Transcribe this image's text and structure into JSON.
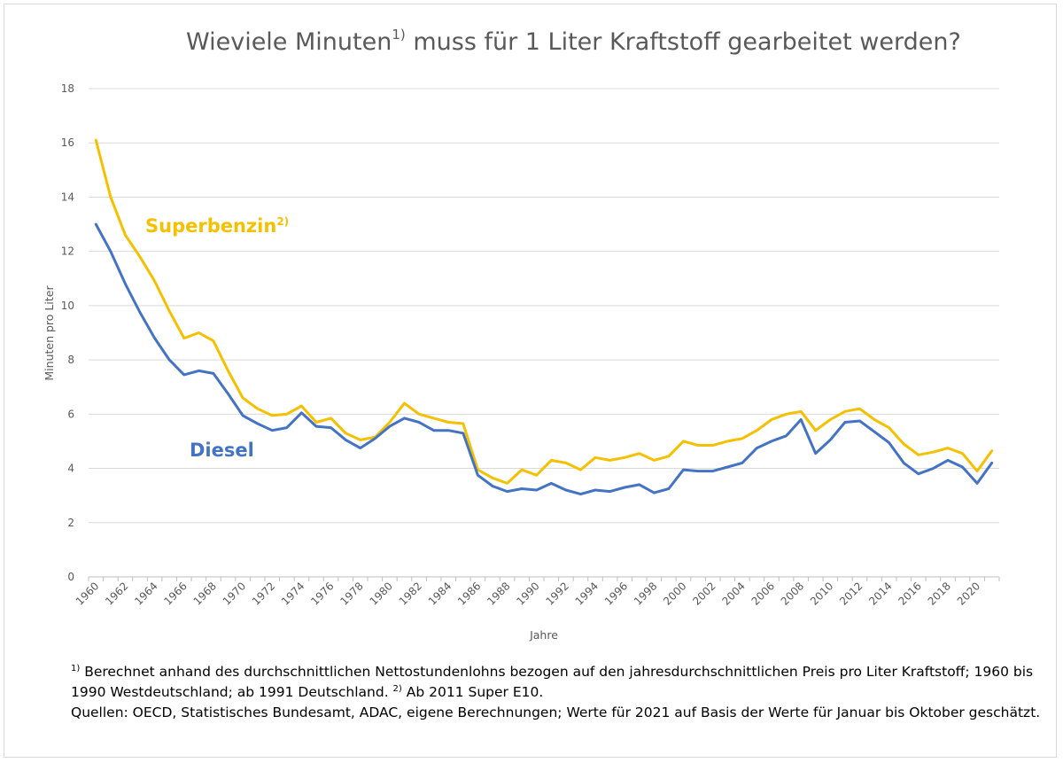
{
  "chart_data": {
    "type": "line",
    "title": {
      "main": "Wieviele Minuten",
      "sup": "1)",
      "rest": " muss für 1 Liter Kraftstoff gearbeitet werden?"
    },
    "xlabel": "Jahre",
    "ylabel": "Minuten pro Liter",
    "ylim": [
      0,
      18
    ],
    "yticks": [
      "0",
      "2",
      "4",
      "6",
      "8",
      "10",
      "12",
      "14",
      "16",
      "18"
    ],
    "xticks": [
      "1960",
      "1962",
      "1964",
      "1966",
      "1968",
      "1970",
      "1972",
      "1974",
      "1976",
      "1978",
      "1980",
      "1982",
      "1984",
      "1986",
      "1988",
      "1990",
      "1992",
      "1994",
      "1996",
      "1998",
      "2000",
      "2002",
      "2004",
      "2006",
      "2008",
      "2010",
      "2012",
      "2014",
      "2016",
      "2018",
      "2020"
    ],
    "grid": "horizontal",
    "x": [
      1960,
      1961,
      1962,
      1963,
      1964,
      1965,
      1966,
      1967,
      1968,
      1969,
      1970,
      1971,
      1972,
      1973,
      1974,
      1975,
      1976,
      1977,
      1978,
      1979,
      1980,
      1981,
      1982,
      1983,
      1984,
      1985,
      1986,
      1987,
      1988,
      1989,
      1990,
      1991,
      1992,
      1993,
      1994,
      1995,
      1996,
      1997,
      1998,
      1999,
      2000,
      2001,
      2002,
      2003,
      2004,
      2005,
      2006,
      2007,
      2008,
      2009,
      2010,
      2011,
      2012,
      2013,
      2014,
      2015,
      2016,
      2017,
      2018,
      2019,
      2020,
      2021
    ],
    "series": [
      {
        "name": "Superbenzin",
        "name_sup": "2)",
        "color": "#f5c000",
        "values": [
          16.1,
          14.0,
          12.6,
          11.8,
          10.9,
          9.8,
          8.8,
          9.0,
          8.7,
          7.6,
          6.6,
          6.2,
          5.95,
          6.0,
          6.3,
          5.7,
          5.85,
          5.3,
          5.05,
          5.15,
          5.7,
          6.4,
          6.0,
          5.85,
          5.7,
          5.65,
          3.95,
          3.65,
          3.45,
          3.95,
          3.75,
          4.3,
          4.2,
          3.95,
          4.4,
          4.3,
          4.4,
          4.55,
          4.3,
          4.45,
          5.0,
          4.85,
          4.85,
          5.0,
          5.1,
          5.4,
          5.8,
          6.0,
          6.1,
          5.4,
          5.8,
          6.1,
          6.2,
          5.8,
          5.5,
          4.9,
          4.5,
          4.6,
          4.75,
          4.55,
          3.9,
          4.65
        ]
      },
      {
        "name": "Diesel",
        "color": "#4472c4",
        "values": [
          13.0,
          12.0,
          10.8,
          9.75,
          8.8,
          8.0,
          7.45,
          7.6,
          7.5,
          6.75,
          5.95,
          5.65,
          5.4,
          5.5,
          6.05,
          5.55,
          5.5,
          5.05,
          4.75,
          5.1,
          5.55,
          5.85,
          5.7,
          5.4,
          5.4,
          5.3,
          3.75,
          3.35,
          3.15,
          3.25,
          3.2,
          3.45,
          3.2,
          3.05,
          3.2,
          3.15,
          3.3,
          3.4,
          3.1,
          3.25,
          3.95,
          3.9,
          3.9,
          4.05,
          4.2,
          4.75,
          5.0,
          5.2,
          5.8,
          4.55,
          5.05,
          5.7,
          5.75,
          5.35,
          4.95,
          4.2,
          3.8,
          4.0,
          4.3,
          4.05,
          3.45,
          4.2
        ]
      }
    ]
  },
  "footnotes": {
    "note1_marker": "1)",
    "note1_text": " Berechnet anhand des durchschnittlichen Nettostundenlohns bezogen auf den jahresdurchschnittlichen Preis pro Liter Kraftstoff; 1960 bis 1990 Westdeutschland; ab 1991 Deutschland. ",
    "note2_marker": "2)",
    "note2_text": " Ab 2011 Super E10.",
    "sources": "Quellen: OECD, Statistisches Bundesamt, ADAC, eigene Berechnungen; Werte für 2021 auf Basis der Werte für Januar bis Oktober geschätzt."
  }
}
